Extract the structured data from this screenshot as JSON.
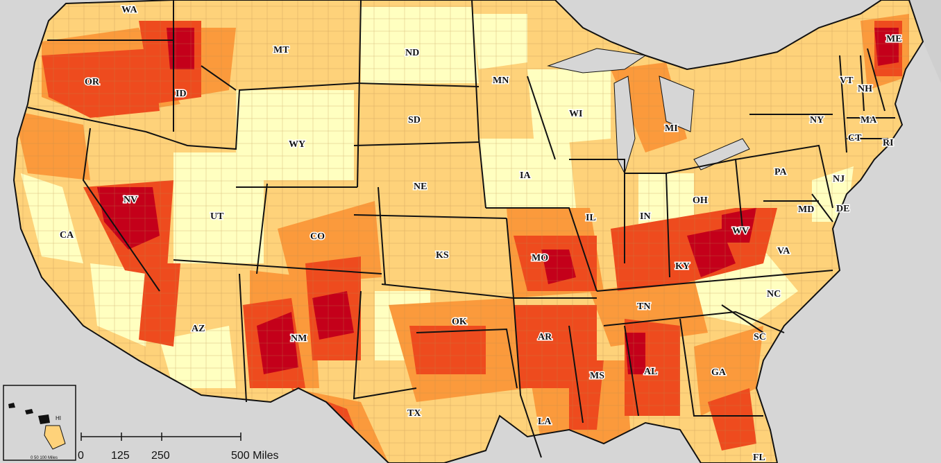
{
  "map": {
    "colors": {
      "background": "#d6d6d6",
      "land_none": "#d6d6d6",
      "class1": "#ffffc0",
      "class2": "#fed27a",
      "class3": "#fb9a3c",
      "class4": "#ee4b1e",
      "class5": "#c4001a",
      "boundary": "#111111"
    },
    "states": [
      {
        "abbr": "WA"
      },
      {
        "abbr": "OR"
      },
      {
        "abbr": "CA"
      },
      {
        "abbr": "ID"
      },
      {
        "abbr": "NV"
      },
      {
        "abbr": "MT"
      },
      {
        "abbr": "WY"
      },
      {
        "abbr": "UT"
      },
      {
        "abbr": "AZ"
      },
      {
        "abbr": "CO"
      },
      {
        "abbr": "NM"
      },
      {
        "abbr": "ND"
      },
      {
        "abbr": "SD"
      },
      {
        "abbr": "NE"
      },
      {
        "abbr": "KS"
      },
      {
        "abbr": "OK"
      },
      {
        "abbr": "TX"
      },
      {
        "abbr": "MN"
      },
      {
        "abbr": "IA"
      },
      {
        "abbr": "MO"
      },
      {
        "abbr": "AR"
      },
      {
        "abbr": "LA"
      },
      {
        "abbr": "WI"
      },
      {
        "abbr": "IL"
      },
      {
        "abbr": "MI"
      },
      {
        "abbr": "IN"
      },
      {
        "abbr": "OH"
      },
      {
        "abbr": "KY"
      },
      {
        "abbr": "TN"
      },
      {
        "abbr": "MS"
      },
      {
        "abbr": "AL"
      },
      {
        "abbr": "GA"
      },
      {
        "abbr": "FL"
      },
      {
        "abbr": "SC"
      },
      {
        "abbr": "NC"
      },
      {
        "abbr": "VA"
      },
      {
        "abbr": "WV"
      },
      {
        "abbr": "PA"
      },
      {
        "abbr": "NY"
      },
      {
        "abbr": "VT"
      },
      {
        "abbr": "NH"
      },
      {
        "abbr": "ME"
      },
      {
        "abbr": "MA"
      },
      {
        "abbr": "CT"
      },
      {
        "abbr": "RI"
      },
      {
        "abbr": "NJ"
      },
      {
        "abbr": "DE"
      },
      {
        "abbr": "MD"
      }
    ],
    "inset": {
      "label": "HI",
      "scale_text": "0  50 100 Miles"
    },
    "scalebar": {
      "ticks": [
        "0",
        "125",
        "250",
        "500 Miles"
      ]
    }
  }
}
